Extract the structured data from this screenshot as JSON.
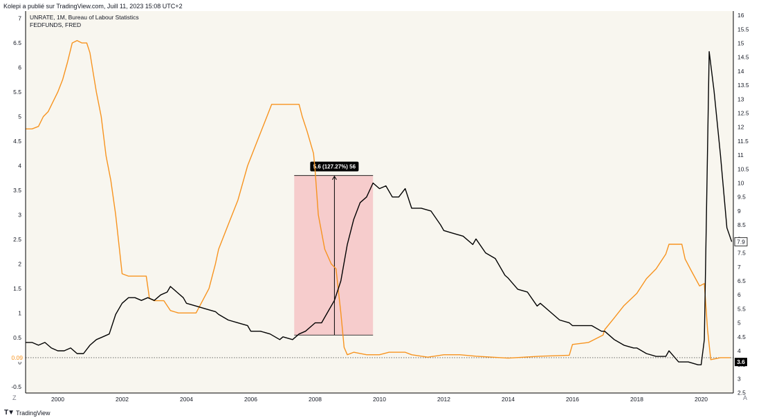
{
  "header": {
    "publish_line": "Kolepi a publié sur TradingView.com, Juill 11, 2023 15:08 UTC+2"
  },
  "legend": {
    "unrate": "UNRATE, 1M, Bureau of Labour Statistics",
    "fedfunds": "FEDFUNDS, FRED"
  },
  "footer": {
    "brand": "TradingView",
    "corner_left": "Z",
    "corner_right": "A"
  },
  "measure_label": "5.6 (127.27%) 56",
  "colors": {
    "fedfunds": "#f7931e",
    "unrate": "#000000",
    "background": "#f8f6ef",
    "measure_box": "#f5b5b8",
    "label_bg": "#000000"
  },
  "chart_data": {
    "type": "line",
    "x_start": 1999.0,
    "x_end": 2021.0,
    "x_ticks": [
      "2000",
      "2002",
      "2004",
      "2006",
      "2008",
      "2010",
      "2012",
      "2014",
      "2016",
      "2018",
      "2020"
    ],
    "left_axis": {
      "ylim": [
        -0.63,
        7.15
      ],
      "ticks": [
        "-0.5",
        "0",
        "0.5",
        "1",
        "1.5",
        "2",
        "2.5",
        "3",
        "3.5",
        "4",
        "4.5",
        "5",
        "5.5",
        "6",
        "6.5",
        "7"
      ],
      "current_value": "0.09",
      "current_value_color": "#f7931e"
    },
    "right_axis": {
      "ylim": [
        2.49,
        16.15
      ],
      "ticks": [
        "2.5",
        "3",
        "3.5",
        "4",
        "4.5",
        "5",
        "5.5",
        "6",
        "6.5",
        "7",
        "7.5",
        "8",
        "8.5",
        "9",
        "9.5",
        "10",
        "10.5",
        "11",
        "11.5",
        "12",
        "12.5",
        "13",
        "13.5",
        "14",
        "14.5",
        "15",
        "15.5",
        "16"
      ],
      "current_values": [
        "7.9",
        "3.6"
      ]
    },
    "series": [
      {
        "name": "FEDFUNDS",
        "axis": "left",
        "color": "#f7931e",
        "points": [
          [
            1999.0,
            4.75
          ],
          [
            1999.2,
            4.75
          ],
          [
            1999.4,
            4.8
          ],
          [
            1999.55,
            5.0
          ],
          [
            1999.7,
            5.1
          ],
          [
            1999.85,
            5.3
          ],
          [
            2000.0,
            5.5
          ],
          [
            2000.15,
            5.75
          ],
          [
            2000.3,
            6.1
          ],
          [
            2000.45,
            6.5
          ],
          [
            2000.6,
            6.55
          ],
          [
            2000.75,
            6.5
          ],
          [
            2000.9,
            6.5
          ],
          [
            2001.0,
            6.3
          ],
          [
            2001.1,
            5.9
          ],
          [
            2001.2,
            5.5
          ],
          [
            2001.35,
            5.0
          ],
          [
            2001.5,
            4.2
          ],
          [
            2001.65,
            3.7
          ],
          [
            2001.8,
            3.0
          ],
          [
            2001.95,
            2.1
          ],
          [
            2002.0,
            1.8
          ],
          [
            2002.2,
            1.75
          ],
          [
            2002.5,
            1.75
          ],
          [
            2002.75,
            1.75
          ],
          [
            2002.85,
            1.3
          ],
          [
            2003.0,
            1.25
          ],
          [
            2003.3,
            1.25
          ],
          [
            2003.5,
            1.05
          ],
          [
            2003.75,
            1.0
          ],
          [
            2004.0,
            1.0
          ],
          [
            2004.3,
            1.0
          ],
          [
            2004.5,
            1.25
          ],
          [
            2004.7,
            1.5
          ],
          [
            2004.9,
            2.0
          ],
          [
            2005.0,
            2.3
          ],
          [
            2005.3,
            2.8
          ],
          [
            2005.6,
            3.3
          ],
          [
            2005.9,
            4.0
          ],
          [
            2006.2,
            4.5
          ],
          [
            2006.5,
            5.0
          ],
          [
            2006.65,
            5.25
          ],
          [
            2007.0,
            5.25
          ],
          [
            2007.5,
            5.25
          ],
          [
            2007.6,
            5.0
          ],
          [
            2007.75,
            4.7
          ],
          [
            2007.95,
            4.25
          ],
          [
            2008.0,
            3.9
          ],
          [
            2008.1,
            3.0
          ],
          [
            2008.3,
            2.3
          ],
          [
            2008.5,
            2.0
          ],
          [
            2008.65,
            1.9
          ],
          [
            2008.8,
            1.0
          ],
          [
            2008.9,
            0.3
          ],
          [
            2009.0,
            0.15
          ],
          [
            2009.2,
            0.2
          ],
          [
            2009.6,
            0.15
          ],
          [
            2010.0,
            0.15
          ],
          [
            2010.3,
            0.2
          ],
          [
            2010.8,
            0.2
          ],
          [
            2011.0,
            0.15
          ],
          [
            2011.5,
            0.1
          ],
          [
            2012.0,
            0.15
          ],
          [
            2012.5,
            0.15
          ],
          [
            2013.0,
            0.12
          ],
          [
            2013.5,
            0.1
          ],
          [
            2014.0,
            0.08
          ],
          [
            2014.5,
            0.1
          ],
          [
            2015.0,
            0.12
          ],
          [
            2015.5,
            0.13
          ],
          [
            2015.9,
            0.14
          ],
          [
            2016.0,
            0.36
          ],
          [
            2016.5,
            0.4
          ],
          [
            2016.95,
            0.55
          ],
          [
            2017.0,
            0.66
          ],
          [
            2017.3,
            0.9
          ],
          [
            2017.6,
            1.15
          ],
          [
            2018.0,
            1.4
          ],
          [
            2018.3,
            1.7
          ],
          [
            2018.6,
            1.9
          ],
          [
            2018.9,
            2.2
          ],
          [
            2019.0,
            2.4
          ],
          [
            2019.4,
            2.4
          ],
          [
            2019.5,
            2.1
          ],
          [
            2019.7,
            1.85
          ],
          [
            2019.95,
            1.55
          ],
          [
            2020.1,
            1.6
          ],
          [
            2020.2,
            0.65
          ],
          [
            2020.3,
            0.05
          ],
          [
            2020.6,
            0.09
          ],
          [
            2020.9,
            0.09
          ]
        ]
      },
      {
        "name": "UNRATE",
        "axis": "right",
        "color": "#000000",
        "points": [
          [
            1999.0,
            4.3
          ],
          [
            1999.2,
            4.3
          ],
          [
            1999.4,
            4.2
          ],
          [
            1999.6,
            4.3
          ],
          [
            1999.8,
            4.1
          ],
          [
            2000.0,
            4.0
          ],
          [
            2000.2,
            4.0
          ],
          [
            2000.4,
            4.1
          ],
          [
            2000.6,
            3.9
          ],
          [
            2000.8,
            3.9
          ],
          [
            2001.0,
            4.2
          ],
          [
            2001.2,
            4.4
          ],
          [
            2001.4,
            4.5
          ],
          [
            2001.6,
            4.6
          ],
          [
            2001.8,
            5.3
          ],
          [
            2002.0,
            5.7
          ],
          [
            2002.2,
            5.9
          ],
          [
            2002.4,
            5.9
          ],
          [
            2002.6,
            5.8
          ],
          [
            2002.8,
            5.9
          ],
          [
            2003.0,
            5.8
          ],
          [
            2003.2,
            6.0
          ],
          [
            2003.4,
            6.1
          ],
          [
            2003.5,
            6.3
          ],
          [
            2003.7,
            6.1
          ],
          [
            2003.9,
            5.9
          ],
          [
            2004.0,
            5.7
          ],
          [
            2004.3,
            5.6
          ],
          [
            2004.6,
            5.5
          ],
          [
            2004.9,
            5.4
          ],
          [
            2005.0,
            5.3
          ],
          [
            2005.3,
            5.1
          ],
          [
            2005.6,
            5.0
          ],
          [
            2005.9,
            4.9
          ],
          [
            2006.0,
            4.7
          ],
          [
            2006.3,
            4.7
          ],
          [
            2006.6,
            4.6
          ],
          [
            2006.9,
            4.4
          ],
          [
            2007.0,
            4.5
          ],
          [
            2007.3,
            4.4
          ],
          [
            2007.5,
            4.6
          ],
          [
            2007.7,
            4.7
          ],
          [
            2007.9,
            4.9
          ],
          [
            2008.0,
            5.0
          ],
          [
            2008.2,
            5.0
          ],
          [
            2008.4,
            5.4
          ],
          [
            2008.6,
            5.8
          ],
          [
            2008.8,
            6.5
          ],
          [
            2009.0,
            7.8
          ],
          [
            2009.2,
            8.7
          ],
          [
            2009.4,
            9.3
          ],
          [
            2009.6,
            9.5
          ],
          [
            2009.8,
            10.0
          ],
          [
            2010.0,
            9.8
          ],
          [
            2010.2,
            9.9
          ],
          [
            2010.4,
            9.5
          ],
          [
            2010.6,
            9.5
          ],
          [
            2010.8,
            9.8
          ],
          [
            2011.0,
            9.1
          ],
          [
            2011.3,
            9.1
          ],
          [
            2011.6,
            9.0
          ],
          [
            2011.9,
            8.5
          ],
          [
            2012.0,
            8.3
          ],
          [
            2012.3,
            8.2
          ],
          [
            2012.6,
            8.1
          ],
          [
            2012.9,
            7.8
          ],
          [
            2013.0,
            8.0
          ],
          [
            2013.3,
            7.5
          ],
          [
            2013.6,
            7.3
          ],
          [
            2013.9,
            6.7
          ],
          [
            2014.0,
            6.6
          ],
          [
            2014.3,
            6.2
          ],
          [
            2014.6,
            6.1
          ],
          [
            2014.9,
            5.6
          ],
          [
            2015.0,
            5.7
          ],
          [
            2015.3,
            5.4
          ],
          [
            2015.6,
            5.1
          ],
          [
            2015.9,
            5.0
          ],
          [
            2016.0,
            4.9
          ],
          [
            2016.3,
            4.9
          ],
          [
            2016.6,
            4.9
          ],
          [
            2016.9,
            4.7
          ],
          [
            2017.0,
            4.7
          ],
          [
            2017.3,
            4.4
          ],
          [
            2017.6,
            4.2
          ],
          [
            2017.9,
            4.1
          ],
          [
            2018.0,
            4.1
          ],
          [
            2018.3,
            3.9
          ],
          [
            2018.6,
            3.8
          ],
          [
            2018.9,
            3.8
          ],
          [
            2019.0,
            4.0
          ],
          [
            2019.3,
            3.6
          ],
          [
            2019.6,
            3.6
          ],
          [
            2019.9,
            3.5
          ],
          [
            2020.0,
            3.5
          ],
          [
            2020.1,
            4.4
          ],
          [
            2020.25,
            14.7
          ],
          [
            2020.4,
            13.3
          ],
          [
            2020.6,
            11.0
          ],
          [
            2020.8,
            8.4
          ],
          [
            2020.95,
            7.9
          ]
        ]
      }
    ],
    "measure": {
      "x_start": 2007.35,
      "x_end": 2009.8,
      "y_low": 0.55,
      "y_high": 3.8,
      "arrow_x": 2008.6,
      "label": "5.6 (127.27%) 56"
    },
    "baseline_left": 0.09
  }
}
